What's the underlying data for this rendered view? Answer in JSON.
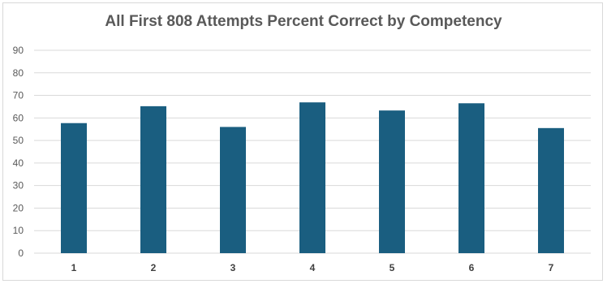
{
  "chart_data": {
    "type": "bar",
    "title": "All First 808 Attempts Percent Correct by Competency",
    "categories": [
      "1",
      "2",
      "3",
      "4",
      "5",
      "6",
      "7"
    ],
    "values": [
      57.7,
      65.2,
      56.0,
      66.9,
      63.3,
      66.5,
      55.5
    ],
    "xlabel": "",
    "ylabel": "",
    "ylim": [
      0,
      90
    ],
    "yticks": [
      0,
      10,
      20,
      30,
      40,
      50,
      60,
      70,
      80,
      90
    ],
    "grid": true,
    "legend": "none",
    "bar_color": "#1a5e80",
    "grid_color": "#d9d9d9"
  }
}
